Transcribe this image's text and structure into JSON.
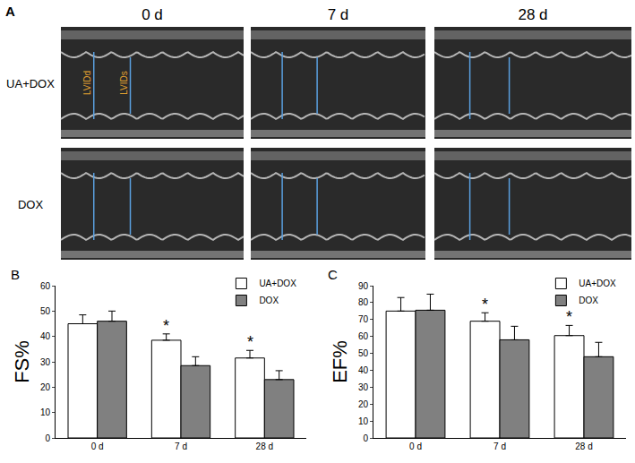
{
  "panel_a": {
    "label": "A",
    "columns": [
      "0 d",
      "7 d",
      "28 d"
    ],
    "rows": [
      "UA+DOX",
      "DOX"
    ],
    "measurements": [
      "LVIDd",
      "LVIDs"
    ]
  },
  "chart_data": [
    {
      "type": "bar",
      "y_label": "FS%",
      "categories": [
        "0 d",
        "7 d",
        "28 d"
      ],
      "series": [
        {
          "name": "UA+DOX",
          "color": "#ffffff",
          "values": [
            45,
            38.5,
            31.5
          ],
          "errors": [
            3.5,
            2.5,
            3
          ]
        },
        {
          "name": "DOX",
          "color": "#808080",
          "values": [
            46,
            28.5,
            23
          ],
          "errors": [
            4,
            3.5,
            3.5
          ]
        }
      ],
      "ylim": [
        0,
        60
      ],
      "yticks": [
        0,
        10,
        20,
        30,
        40,
        50,
        60
      ],
      "legend": "top right",
      "annotations": [
        {
          "text": "B"
        },
        {
          "text": "*",
          "category": "7 d",
          "series": "UA+DOX"
        },
        {
          "text": "*",
          "category": "28 d",
          "series": "UA+DOX"
        }
      ]
    },
    {
      "type": "bar",
      "y_label": "EF%",
      "categories": [
        "0 d",
        "7 d",
        "28 d"
      ],
      "series": [
        {
          "name": "UA+DOX",
          "color": "#ffffff",
          "values": [
            75,
            69,
            60.5
          ],
          "errors": [
            8,
            5,
            6
          ]
        },
        {
          "name": "DOX",
          "color": "#808080",
          "values": [
            75.5,
            58,
            48
          ],
          "errors": [
            9.5,
            8,
            8.5
          ]
        }
      ],
      "ylim": [
        0,
        90
      ],
      "yticks": [
        0,
        10,
        20,
        30,
        40,
        50,
        60,
        70,
        80,
        90
      ],
      "legend": "top right",
      "annotations": [
        {
          "text": "C"
        },
        {
          "text": "*",
          "category": "7 d",
          "series": "UA+DOX"
        },
        {
          "text": "*",
          "category": "28 d",
          "series": "UA+DOX"
        }
      ]
    }
  ]
}
